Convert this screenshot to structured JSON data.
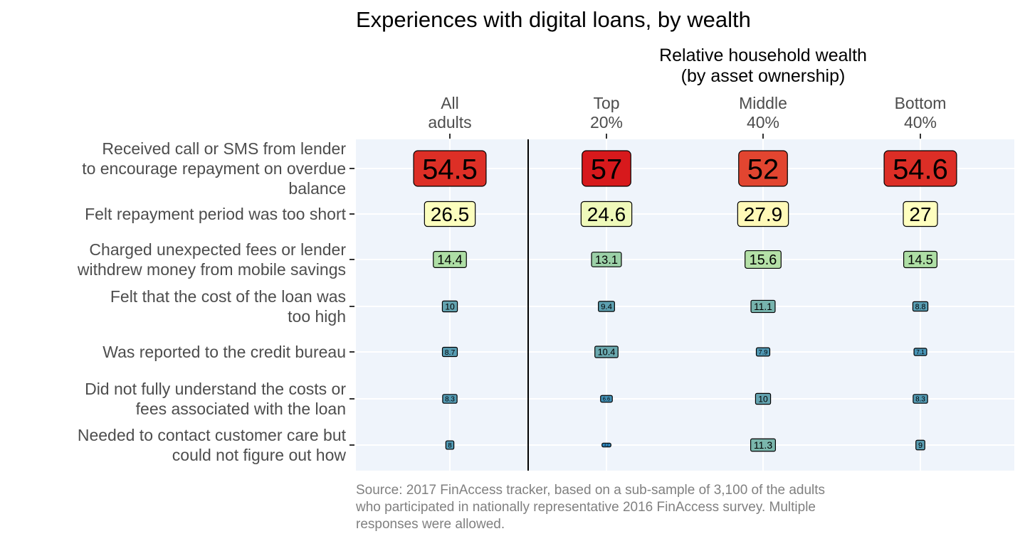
{
  "colors": {
    "panel_bg": "#eff4fb",
    "gridline": "#ffffff",
    "divider": "#000000",
    "palette_low": "#2b83ba",
    "palette_mid_low": "#abdda4",
    "palette_mid": "#ffffbf",
    "palette_mid_high": "#fdae61",
    "palette_high": "#d7191c"
  },
  "chart_data": {
    "type": "heatmap",
    "title": "Experiences with digital loans, by wealth",
    "subtitle": [
      "Relative household wealth",
      "(by asset ownership)"
    ],
    "columns": [
      {
        "lines": [
          "All",
          "adults"
        ]
      },
      {
        "lines": [
          "Top",
          "20%"
        ]
      },
      {
        "lines": [
          "Middle",
          "40%"
        ]
      },
      {
        "lines": [
          "Bottom",
          "40%"
        ]
      }
    ],
    "rows": [
      {
        "lines": [
          "Received call or SMS from lender",
          "to encourage repayment on overdue",
          "balance"
        ],
        "values": [
          "54.5",
          "57",
          "52",
          "54.6"
        ]
      },
      {
        "lines": [
          "Felt repayment period was too short"
        ],
        "values": [
          "26.5",
          "24.6",
          "27.9",
          "27"
        ]
      },
      {
        "lines": [
          "Charged unexpected fees or lender",
          "withdrew money from mobile savings"
        ],
        "values": [
          "14.4",
          "13.1",
          "15.6",
          "14.5"
        ]
      },
      {
        "lines": [
          "Felt that the cost of the loan was",
          "too high"
        ],
        "values": [
          "10",
          "9.4",
          "11.1",
          "8.8"
        ]
      },
      {
        "lines": [
          "Was reported to the credit bureau"
        ],
        "values": [
          "8.7",
          "10.4",
          "7.9",
          "7.1"
        ]
      },
      {
        "lines": [
          "Did not fully understand the costs or",
          "fees associated with the loan"
        ],
        "values": [
          "8.3",
          "6.6",
          "10",
          "8.3"
        ]
      },
      {
        "lines": [
          "Needed to contact customer care but",
          "could not figure out how"
        ],
        "values": [
          "8",
          "4.2",
          "11.3",
          "9"
        ]
      }
    ],
    "legend": "none",
    "grid": true,
    "caption": [
      "Source: 2017 FinAccess tracker, based on a sub-sample of 3,100 of the adults",
      "who participated in nationally representative 2016 FinAccess survey. Multiple",
      "responses were allowed."
    ]
  }
}
